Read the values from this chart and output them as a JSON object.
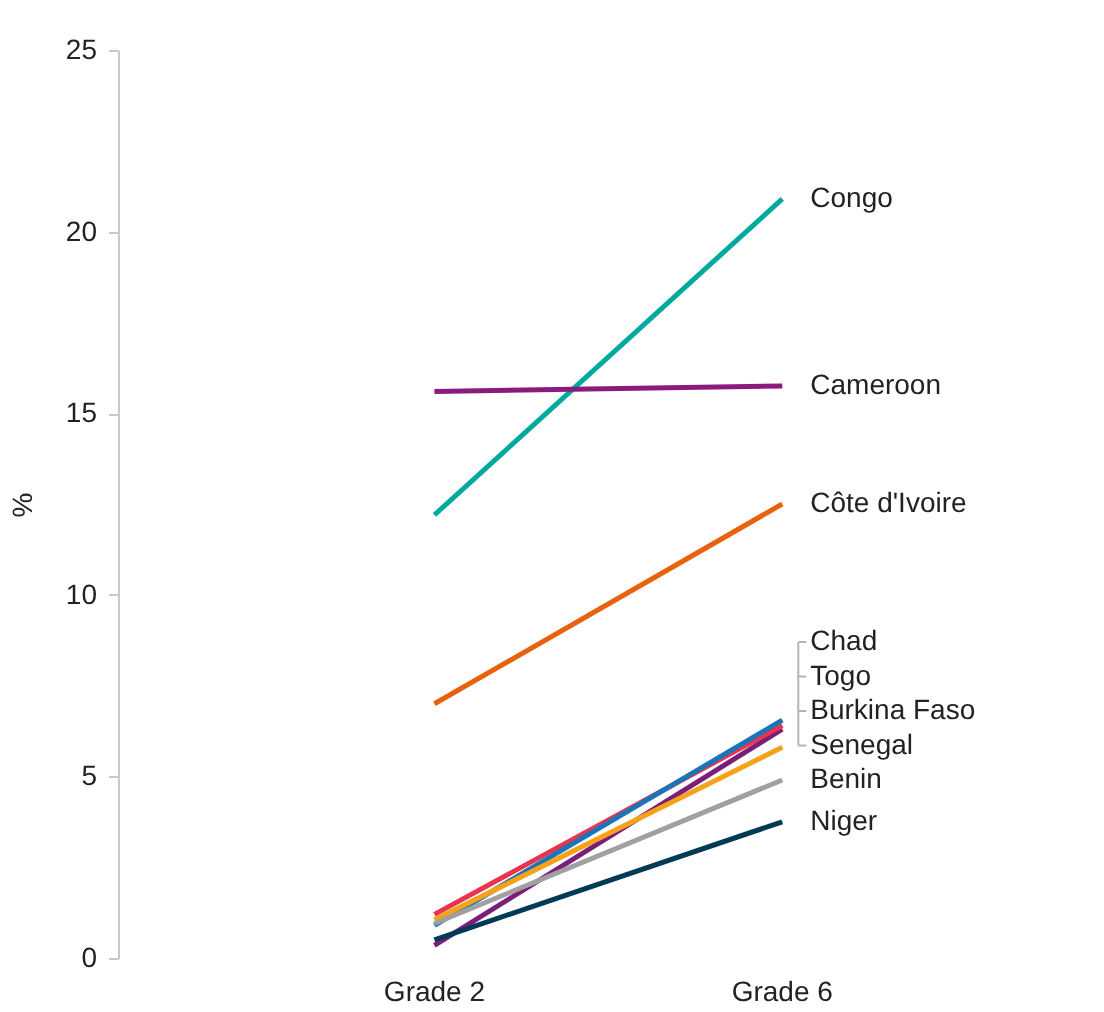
{
  "chart_data": {
    "type": "line",
    "ylabel": "%",
    "categories": [
      "Grade 2",
      "Grade 6"
    ],
    "ylim": [
      0,
      25
    ],
    "yticks": [
      0,
      5,
      10,
      15,
      20,
      25
    ],
    "grid": false,
    "legend": false,
    "marker": "none",
    "line_style": "solid",
    "series": [
      {
        "name": "Congo",
        "color": "#00a99d",
        "values": [
          12.2,
          20.9
        ]
      },
      {
        "name": "Cameroon",
        "color": "#8b1a7e",
        "values": [
          15.6,
          15.75
        ]
      },
      {
        "name": "Côte d'Ivoire",
        "color": "#e8620e",
        "values": [
          7.0,
          12.5
        ]
      },
      {
        "name": "Chad",
        "color": "#7b1e7a",
        "values": [
          0.35,
          6.3
        ]
      },
      {
        "name": "Togo",
        "color": "#e8344e",
        "values": [
          1.2,
          6.4
        ]
      },
      {
        "name": "Burkina Faso",
        "color": "#1a75b8",
        "values": [
          0.9,
          6.55
        ]
      },
      {
        "name": "Senegal",
        "color": "#f5a21b",
        "values": [
          1.05,
          5.8
        ]
      },
      {
        "name": "Benin",
        "color": "#a0a0a0",
        "values": [
          0.95,
          4.9
        ]
      },
      {
        "name": "Niger",
        "color": "#003a56",
        "values": [
          0.5,
          3.75
        ]
      }
    ]
  }
}
